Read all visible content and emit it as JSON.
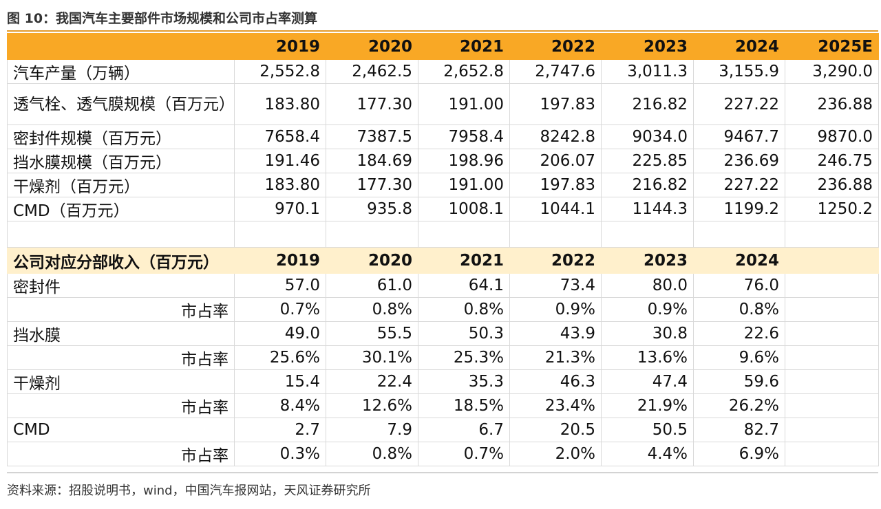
{
  "title": "图 10：我国汽车主要部件市场规模和公司市占率测算",
  "header": [
    "",
    "2019",
    "2020",
    "2021",
    "2022",
    "2023",
    "2024",
    "2025E"
  ],
  "market_rows": [
    {
      "label": "汽车产量（万辆）",
      "values": [
        "2,552.8",
        "2,462.5",
        "2,652.8",
        "2,747.6",
        "3,011.3",
        "3,155.9",
        "3,290.0"
      ]
    },
    {
      "label": "透气栓、透气膜规模（百万元）",
      "values": [
        "183.80",
        "177.30",
        "191.00",
        "197.83",
        "216.82",
        "227.22",
        "236.88"
      ]
    },
    {
      "label": "密封件规模（百万元）",
      "values": [
        "7658.4",
        "7387.5",
        "7958.4",
        "8242.8",
        "9034.0",
        "9467.7",
        "9870.0"
      ]
    },
    {
      "label": "挡水膜规模（百万元）",
      "values": [
        "191.46",
        "184.69",
        "198.96",
        "206.07",
        "225.85",
        "236.69",
        "246.75"
      ]
    },
    {
      "label": "干燥剂（百万元）",
      "values": [
        "183.80",
        "177.30",
        "191.00",
        "197.83",
        "216.82",
        "227.22",
        "236.88"
      ]
    },
    {
      "label": "CMD（百万元）",
      "values": [
        "970.1",
        "935.8",
        "1008.1",
        "1044.1",
        "1144.3",
        "1199.2",
        "1250.2"
      ]
    }
  ],
  "section_header": [
    "公司对应分部收入（百万元）",
    "2019",
    "2020",
    "2021",
    "2022",
    "2023",
    "2024",
    ""
  ],
  "company_rows": [
    {
      "label": "密封件",
      "values": [
        "57.0",
        "61.0",
        "64.1",
        "73.4",
        "80.0",
        "76.0",
        ""
      ]
    },
    {
      "label": "市占率",
      "sub": true,
      "values": [
        "0.7%",
        "0.8%",
        "0.8%",
        "0.9%",
        "0.9%",
        "0.8%",
        ""
      ]
    },
    {
      "label": "挡水膜",
      "values": [
        "49.0",
        "55.5",
        "50.3",
        "43.9",
        "30.8",
        "22.6",
        ""
      ]
    },
    {
      "label": "市占率",
      "sub": true,
      "values": [
        "25.6%",
        "30.1%",
        "25.3%",
        "21.3%",
        "13.6%",
        "9.6%",
        ""
      ]
    },
    {
      "label": "干燥剂",
      "values": [
        "15.4",
        "22.4",
        "35.3",
        "46.3",
        "47.4",
        "59.6",
        ""
      ]
    },
    {
      "label": "市占率",
      "sub": true,
      "values": [
        "8.4%",
        "12.6%",
        "18.5%",
        "23.4%",
        "21.9%",
        "26.2%",
        ""
      ]
    },
    {
      "label": "CMD",
      "values": [
        "2.7",
        "7.9",
        "6.7",
        "20.5",
        "50.5",
        "82.7",
        ""
      ]
    },
    {
      "label": "市占率",
      "sub": true,
      "values": [
        "0.3%",
        "0.8%",
        "0.7%",
        "2.0%",
        "4.4%",
        "6.9%",
        ""
      ]
    }
  ],
  "source": "资料来源：招股说明书，wind，中国汽车报网站，天风证券研究所",
  "colors": {
    "header_bg": "#f9a825",
    "section_bg": "#fff0cc",
    "rule": "#e39a2b"
  }
}
